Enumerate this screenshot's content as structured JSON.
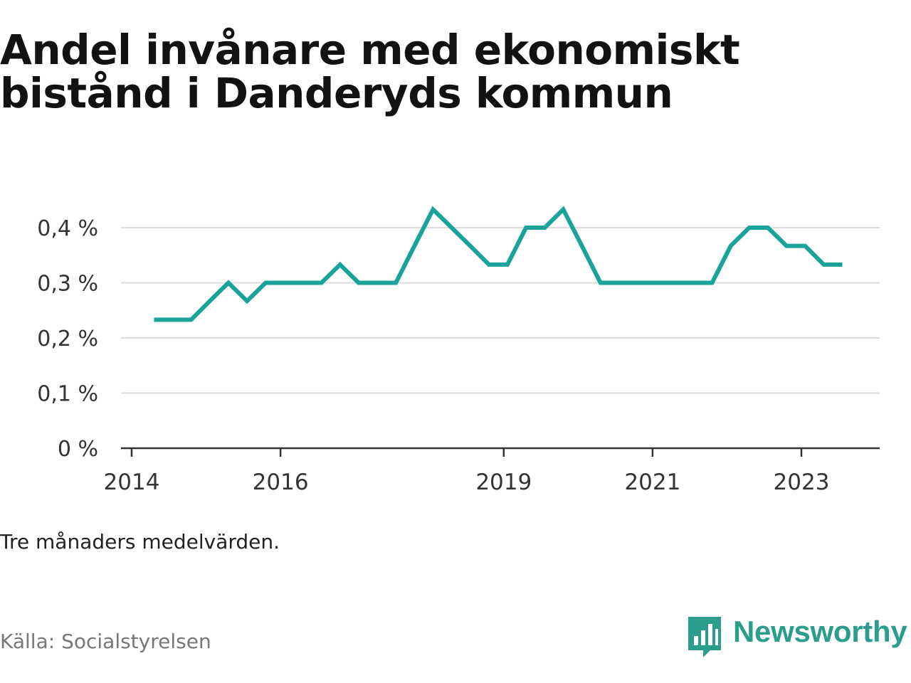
{
  "title_line1": "Andel invånare med ekonomiskt",
  "title_line2": "bistånd i Danderyds kommun",
  "note": "Tre månaders medelvärden.",
  "source": "Källa: Socialstyrelsen",
  "brand": "Newsworthy",
  "colors": {
    "line": "#1aa39a",
    "grid": "#dddddd",
    "axis": "#333333",
    "brand": "#2b9d8d"
  },
  "chart_data": {
    "type": "line",
    "title": "Andel invånare med ekonomiskt bistånd i Danderyds kommun",
    "xlabel": "",
    "ylabel": "",
    "ylim": [
      0,
      0.4
    ],
    "y_ticks": [
      0,
      0.1,
      0.2,
      0.3,
      0.4
    ],
    "y_tick_labels": [
      "0 %",
      "0,1 %",
      "0,2 %",
      "0,3 %",
      "0,4 %"
    ],
    "x_ticks": [
      2014,
      2016,
      2019,
      2021,
      2023
    ],
    "x_tick_labels": [
      "2014",
      "2016",
      "2019",
      "2021",
      "2023"
    ],
    "x_range": [
      2014,
      2024
    ],
    "grid": true,
    "series": [
      {
        "name": "",
        "unit": "%",
        "x": [
          2014.3,
          2014.55,
          2014.8,
          2015.05,
          2015.3,
          2015.55,
          2015.8,
          2016.05,
          2016.3,
          2016.55,
          2016.8,
          2017.05,
          2017.3,
          2017.55,
          2017.8,
          2018.05,
          2018.3,
          2018.55,
          2018.8,
          2019.05,
          2019.3,
          2019.55,
          2019.8,
          2020.05,
          2020.3,
          2020.55,
          2020.8,
          2021.05,
          2021.3,
          2021.55,
          2021.8,
          2022.05,
          2022.3,
          2022.55,
          2022.8,
          2023.05,
          2023.3,
          2023.55
        ],
        "y": [
          0.233,
          0.233,
          0.233,
          0.267,
          0.3,
          0.267,
          0.3,
          0.3,
          0.3,
          0.3,
          0.333,
          0.3,
          0.3,
          0.3,
          0.367,
          0.433,
          0.4,
          0.367,
          0.333,
          0.333,
          0.4,
          0.4,
          0.433,
          0.367,
          0.3,
          0.3,
          0.3,
          0.3,
          0.3,
          0.3,
          0.3,
          0.367,
          0.4,
          0.4,
          0.367,
          0.367,
          0.333,
          0.333
        ]
      }
    ]
  }
}
